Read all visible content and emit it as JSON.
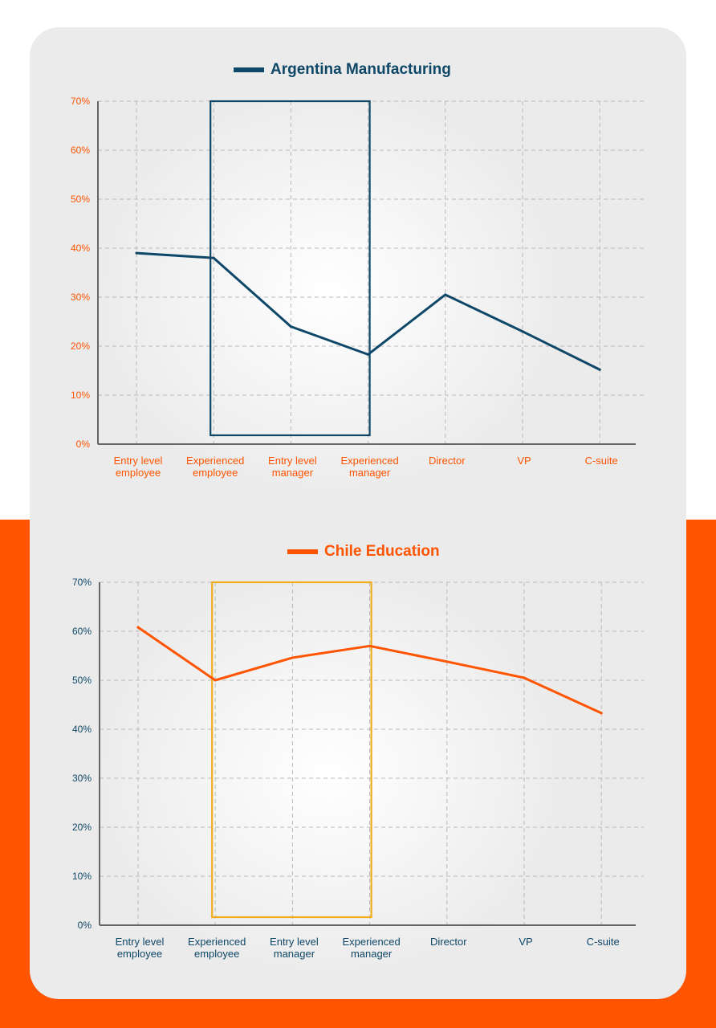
{
  "colors": {
    "orange": "#ff5400",
    "navy": "#0e4767",
    "highlight_yellow": "#f2ac1e",
    "grid": "#b9b9b9",
    "axis": "#666666"
  },
  "chart_data": [
    {
      "type": "line",
      "title": "Argentina Manufacturing",
      "categories": [
        [
          "Entry level",
          "employee"
        ],
        [
          "Experienced",
          "employee"
        ],
        [
          "Entry level",
          "manager"
        ],
        [
          "Experienced",
          "manager"
        ],
        [
          "Director"
        ],
        [
          "VP"
        ],
        [
          "C-suite"
        ]
      ],
      "series": [
        {
          "name": "Argentina Manufacturing",
          "values": [
            39,
            38,
            24,
            18.3,
            30.5,
            23,
            15.2
          ],
          "color": "#0e4767"
        }
      ],
      "ylim": [
        0,
        70
      ],
      "yticks": [
        "0%",
        "10%",
        "20%",
        "30%",
        "40%",
        "50%",
        "60%",
        "70%"
      ],
      "grid": true,
      "highlight_range": [
        "Experienced employee",
        "Experienced manager"
      ],
      "highlight_color": "#0e4767",
      "tick_color": "#ff5400",
      "line_color": "#0e4767"
    },
    {
      "type": "line",
      "title": "Chile Education",
      "categories": [
        [
          "Entry level",
          "employee"
        ],
        [
          "Experienced",
          "employee"
        ],
        [
          "Entry level",
          "manager"
        ],
        [
          "Experienced",
          "manager"
        ],
        [
          "Director"
        ],
        [
          "VP"
        ],
        [
          "C-suite"
        ]
      ],
      "series": [
        {
          "name": "Chile Education",
          "values": [
            60.8,
            50,
            54.6,
            57,
            53.8,
            50.5,
            43.3
          ],
          "color": "#ff5400"
        }
      ],
      "ylim": [
        0,
        70
      ],
      "yticks": [
        "0%",
        "10%",
        "20%",
        "30%",
        "40%",
        "50%",
        "60%",
        "70%"
      ],
      "grid": true,
      "highlight_range": [
        "Experienced employee",
        "Experienced manager"
      ],
      "highlight_color": "#f2ac1e",
      "tick_color": "#0e4767",
      "line_color": "#ff5400"
    }
  ]
}
